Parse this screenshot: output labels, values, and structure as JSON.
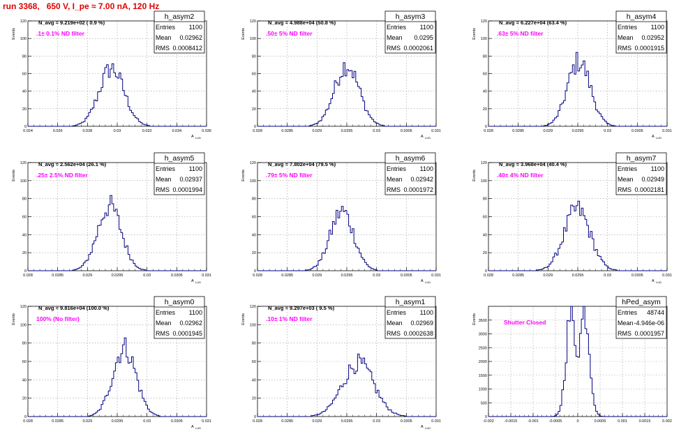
{
  "title": "run 3368,   650 V, I_pe ≈ 7.00 nA, 120 Hz",
  "colors": {
    "title": "#e00000",
    "histogram": "#000080",
    "annotation": "#ff00ff",
    "grid": "#999999"
  },
  "chart_data": [
    {
      "type": "histogram",
      "name": "h_asym2",
      "stats": {
        "entries": "1100",
        "mean": "0.02962",
        "rms": "0.0008412"
      },
      "navg": "N_avg = 9.219e+02 ( 0.9 %)",
      "filter": ".1± 0.1% ND filter",
      "ylabel": "Events",
      "xlabel": "A",
      "xlabel_sub": "LUD",
      "xlim": [
        0.024,
        0.036
      ],
      "ylim": [
        0,
        120
      ],
      "xticks": [
        0.024,
        0.026,
        0.028,
        0.03,
        0.032,
        0.034,
        0.036
      ],
      "xtick_labels": [
        "0.024",
        "0.026",
        "0.028",
        "0.03",
        "0.032",
        "0.034",
        "0.036"
      ],
      "yticks": [
        0,
        20,
        40,
        60,
        80,
        100,
        120
      ],
      "ytick_labels": [
        "0",
        "20",
        "40",
        "60",
        "80",
        "100",
        "120"
      ],
      "mu": 0.02962,
      "sigma": 0.00084,
      "peak": 66
    },
    {
      "type": "histogram",
      "name": "h_asym3",
      "stats": {
        "entries": "1100",
        "mean": "0.0295",
        "rms": "0.0002061"
      },
      "navg": "N_avg = 4.988e+04 (50.8 %)",
      "filter": ".50± 5% ND filter",
      "ylabel": "Events",
      "xlabel": "A",
      "xlabel_sub": "LUD",
      "xlim": [
        0.028,
        0.031
      ],
      "ylim": [
        0,
        120
      ],
      "xticks": [
        0.028,
        0.0285,
        0.029,
        0.0295,
        0.03,
        0.0305,
        0.031
      ],
      "xtick_labels": [
        "0.028",
        "0.0285",
        "0.029",
        "0.0295",
        "0.03",
        "0.0305",
        "0.031"
      ],
      "yticks": [
        0,
        20,
        40,
        60,
        80,
        100,
        120
      ],
      "ytick_labels": [
        "0",
        "20",
        "40",
        "60",
        "80",
        "100",
        "120"
      ],
      "mu": 0.0295,
      "sigma": 0.000206,
      "peak": 70
    },
    {
      "type": "histogram",
      "name": "h_asym4",
      "stats": {
        "entries": "1100",
        "mean": "0.02952",
        "rms": "0.0001915"
      },
      "navg": "N_avg = 6.227e+04 (63.4 %)",
      "filter": ".63± 5% ND filter",
      "ylabel": "Events",
      "xlabel": "A",
      "xlabel_sub": "LUD",
      "xlim": [
        0.028,
        0.031
      ],
      "ylim": [
        0,
        120
      ],
      "xticks": [
        0.028,
        0.0285,
        0.029,
        0.0295,
        0.03,
        0.0305,
        0.031
      ],
      "xtick_labels": [
        "0.028",
        "0.0285",
        "0.029",
        "0.0295",
        "0.03",
        "0.0305",
        "0.031"
      ],
      "yticks": [
        0,
        20,
        40,
        60,
        80,
        100,
        120
      ],
      "ytick_labels": [
        "0",
        "20",
        "40",
        "60",
        "80",
        "100",
        "120"
      ],
      "mu": 0.02952,
      "sigma": 0.000192,
      "peak": 74
    },
    {
      "type": "histogram",
      "name": "h_asym5",
      "stats": {
        "entries": "1100",
        "mean": "0.02937",
        "rms": "0.0001994"
      },
      "navg": "N_avg = 2.562e+04 (26.1 %)",
      "filter": ".25± 2.5% ND filter",
      "ylabel": "Events",
      "xlabel": "A",
      "xlabel_sub": "LUD",
      "xlim": [
        0.028,
        0.031
      ],
      "ylim": [
        0,
        120
      ],
      "xticks": [
        0.028,
        0.0285,
        0.029,
        0.0295,
        0.03,
        0.0305,
        0.031
      ],
      "xtick_labels": [
        "0.028",
        "0.0285",
        "0.029",
        "0.0295",
        "0.03",
        "0.0305",
        "0.031"
      ],
      "yticks": [
        0,
        20,
        40,
        60,
        80,
        100,
        120
      ],
      "ytick_labels": [
        "0",
        "20",
        "40",
        "60",
        "80",
        "100",
        "120"
      ],
      "mu": 0.02937,
      "sigma": 0.0002,
      "peak": 72
    },
    {
      "type": "histogram",
      "name": "h_asym6",
      "stats": {
        "entries": "1100",
        "mean": "0.02942",
        "rms": "0.0001972"
      },
      "navg": "N_avg = 7.802e+04 (79.5 %)",
      "filter": ".79± 5% ND filter",
      "ylabel": "Events",
      "xlabel": "A",
      "xlabel_sub": "LUD",
      "xlim": [
        0.028,
        0.031
      ],
      "ylim": [
        0,
        120
      ],
      "xticks": [
        0.028,
        0.0285,
        0.029,
        0.0295,
        0.03,
        0.0305,
        0.031
      ],
      "xtick_labels": [
        "0.028",
        "0.0285",
        "0.029",
        "0.0295",
        "0.03",
        "0.0305",
        "0.031"
      ],
      "yticks": [
        0,
        20,
        40,
        60,
        80,
        100,
        120
      ],
      "ytick_labels": [
        "0",
        "20",
        "40",
        "60",
        "80",
        "100",
        "120"
      ],
      "mu": 0.02942,
      "sigma": 0.000197,
      "peak": 66
    },
    {
      "type": "histogram",
      "name": "h_asym7",
      "stats": {
        "entries": "1100",
        "mean": "0.02949",
        "rms": "0.0002181"
      },
      "navg": "N_avg = 3.968e+04 (40.4 %)",
      "filter": ".40± 4% ND filter",
      "ylabel": "Events",
      "xlabel": "A",
      "xlabel_sub": "LUD",
      "xlim": [
        0.028,
        0.031
      ],
      "ylim": [
        0,
        120
      ],
      "xticks": [
        0.028,
        0.0285,
        0.029,
        0.0295,
        0.03,
        0.0305,
        0.031
      ],
      "xtick_labels": [
        "0.028",
        "0.0285",
        "0.029",
        "0.0295",
        "0.03",
        "0.0305",
        "0.031"
      ],
      "yticks": [
        0,
        20,
        40,
        60,
        80,
        100,
        120
      ],
      "ytick_labels": [
        "0",
        "20",
        "40",
        "60",
        "80",
        "100",
        "120"
      ],
      "mu": 0.02949,
      "sigma": 0.000218,
      "peak": 68
    },
    {
      "type": "histogram",
      "name": "h_asym0",
      "stats": {
        "entries": "1100",
        "mean": "0.02962",
        "rms": "0.0001945"
      },
      "navg": "N_avg = 9.816e+04 (100.0 %)",
      "filter": "100% (No filter)",
      "ylabel": "Events",
      "xlabel": "A",
      "xlabel_sub": "LUD",
      "xlim": [
        0.028,
        0.031
      ],
      "ylim": [
        0,
        120
      ],
      "xticks": [
        0.028,
        0.0285,
        0.029,
        0.0295,
        0.03,
        0.0305,
        0.031
      ],
      "xtick_labels": [
        "0.028",
        "0.0285",
        "0.029",
        "0.0295",
        "0.03",
        "0.0305",
        "0.031"
      ],
      "yticks": [
        0,
        20,
        40,
        60,
        80,
        100,
        120
      ],
      "ytick_labels": [
        "0",
        "20",
        "40",
        "60",
        "80",
        "100",
        "120"
      ],
      "mu": 0.02962,
      "sigma": 0.000195,
      "peak": 75
    },
    {
      "type": "histogram",
      "name": "h_asym1",
      "stats": {
        "entries": "1100",
        "mean": "0.02969",
        "rms": "0.0002638"
      },
      "navg": "N_avg = 9.297e+03 ( 9.5 %)",
      "filter": ".10± 1% ND filter",
      "ylabel": "Events",
      "xlabel": "A",
      "xlabel_sub": "LUD",
      "xlim": [
        0.028,
        0.031
      ],
      "ylim": [
        0,
        120
      ],
      "xticks": [
        0.028,
        0.0285,
        0.029,
        0.0295,
        0.03,
        0.0305,
        0.031
      ],
      "xtick_labels": [
        "0.028",
        "0.0285",
        "0.029",
        "0.0295",
        "0.03",
        "0.0305",
        "0.031"
      ],
      "yticks": [
        0,
        20,
        40,
        60,
        80,
        100,
        120
      ],
      "ytick_labels": [
        "0",
        "20",
        "40",
        "60",
        "80",
        "100",
        "120"
      ],
      "mu": 0.02969,
      "sigma": 0.000264,
      "peak": 58
    },
    {
      "type": "histogram",
      "name": "hPed_asym",
      "stats": {
        "entries": "48744",
        "mean": "-4.946e-06",
        "rms": "0.0001957"
      },
      "navg": "",
      "filter": "Shutter Closed",
      "ylabel": "Events",
      "xlabel": "",
      "xlabel_sub": "",
      "xlim": [
        -0.002,
        0.002
      ],
      "ylim": [
        0,
        4000
      ],
      "xticks": [
        -0.002,
        -0.0015,
        -0.001,
        -0.0005,
        0,
        0.0005,
        0.001,
        0.0015,
        0.002
      ],
      "xtick_labels": [
        "-0.002",
        "-0.0015",
        "-0.001",
        "-0.0005",
        "0",
        "0.0005",
        "0.001",
        "0.0015",
        "0.002"
      ],
      "yticks": [
        0,
        500,
        1000,
        1500,
        2000,
        2500,
        3000,
        3500
      ],
      "ytick_labels": [
        "0",
        "500",
        "1000",
        "1500",
        "2000",
        "2500",
        "3000",
        "3500"
      ],
      "mu": 0,
      "sigma": 0.000196,
      "peak": 3800,
      "bimodal": true
    }
  ]
}
